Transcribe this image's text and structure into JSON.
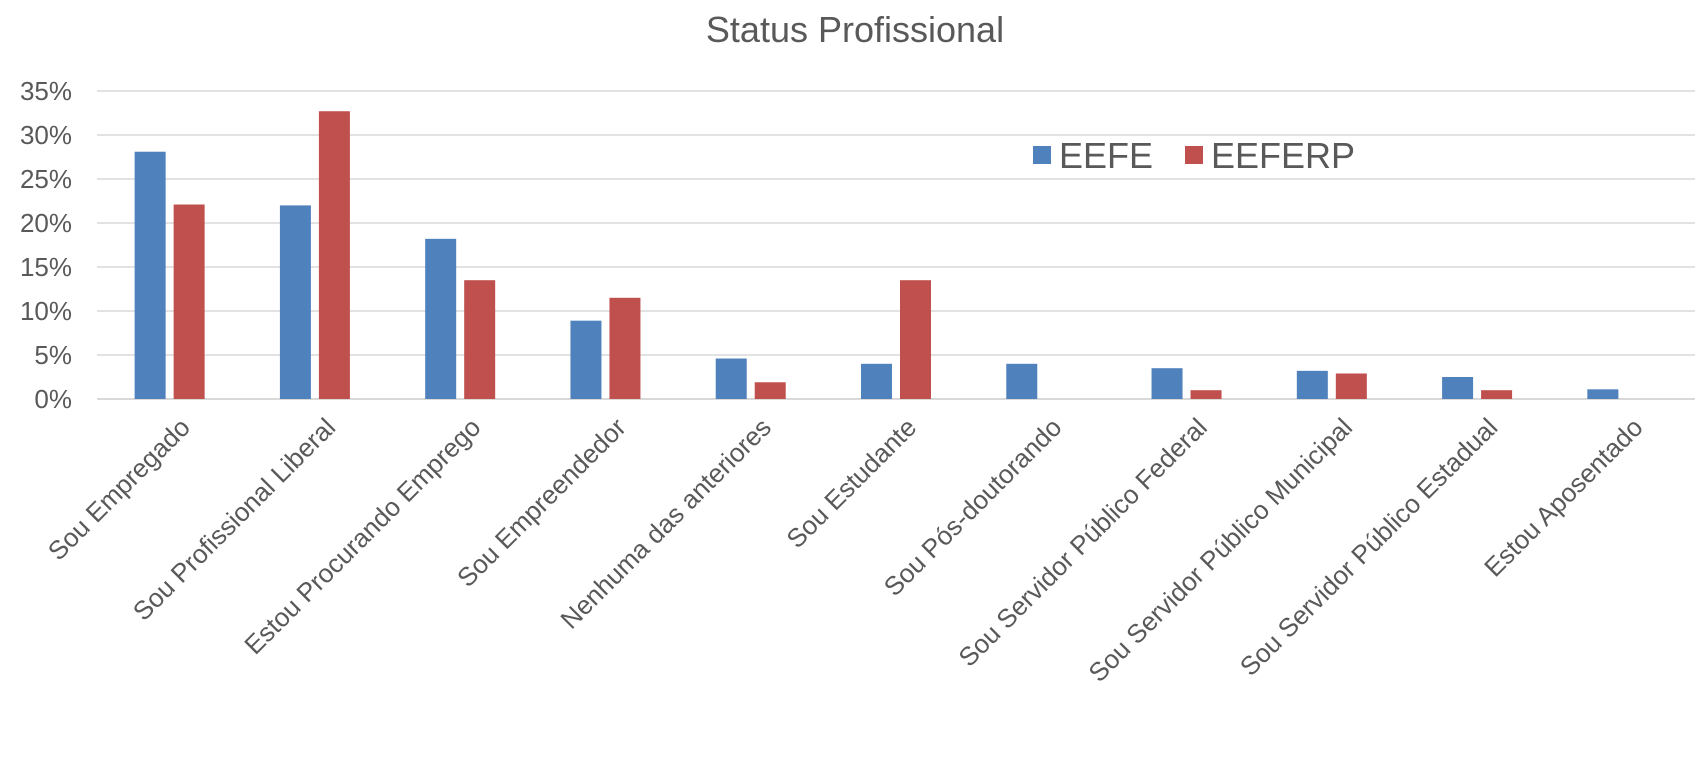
{
  "chart_data": {
    "type": "bar",
    "title": "Status Profissional",
    "xlabel": "",
    "ylabel": "",
    "ylim": [
      0,
      35
    ],
    "yticks": [
      "0%",
      "5%",
      "10%",
      "15%",
      "20%",
      "25%",
      "30%",
      "35%"
    ],
    "grid": true,
    "legend_position": "top-right",
    "categories": [
      "Sou Empregado",
      "Sou Profissional Liberal",
      "Estou Procurando Emprego",
      "Sou Empreendedor",
      "Nenhuma das anteriores",
      "Sou Estudante",
      "Sou Pós-doutorando",
      "Sou Servidor Público Federal",
      "Sou Servidor Público Municipal",
      "Sou Servidor Público Estadual",
      "Estou Aposentado"
    ],
    "series": [
      {
        "name": "EEFE",
        "color": "#4f81bd",
        "values": [
          28.1,
          22.0,
          18.2,
          8.9,
          4.6,
          4.0,
          4.0,
          3.5,
          3.2,
          2.5,
          1.1
        ]
      },
      {
        "name": "EEFERP",
        "color": "#c0504d",
        "values": [
          22.1,
          32.7,
          13.5,
          11.5,
          1.9,
          13.5,
          0,
          1.0,
          2.9,
          1.0,
          0
        ]
      }
    ]
  }
}
